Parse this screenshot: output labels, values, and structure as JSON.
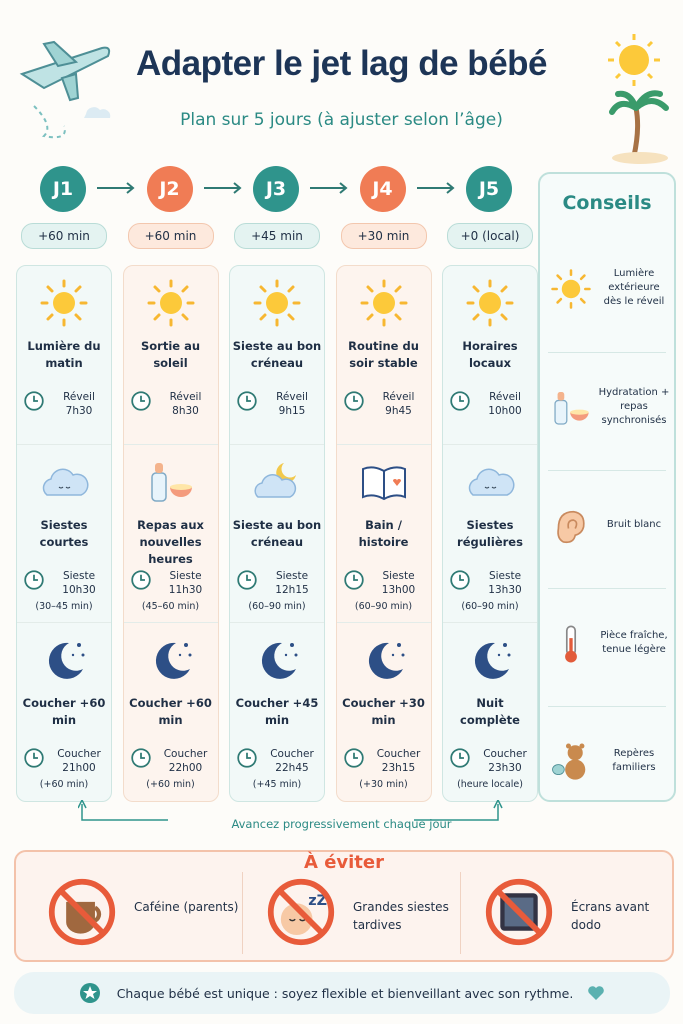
{
  "header": {
    "title": "Adapter le jet lag de bébé",
    "subtitle": "Plan sur 5 jours (à ajuster selon l’âge)"
  },
  "days": [
    {
      "label": "J1",
      "shift": "+60 min",
      "cards": [
        {
          "title": "Lumière du matin",
          "time_label": "Réveil",
          "time": "7h30"
        },
        {
          "title": "Siestes courtes",
          "time_label": "Sieste",
          "time": "10h30",
          "note": "(30–45 min)"
        },
        {
          "title": "Coucher +60 min",
          "time_label": "Coucher",
          "time": "21h00",
          "note": "(+60 min)"
        }
      ]
    },
    {
      "label": "J2",
      "shift": "+60 min",
      "cards": [
        {
          "title": "Sortie au soleil",
          "time_label": "Réveil",
          "time": "8h30"
        },
        {
          "title": "Repas aux nouvelles heures",
          "time_label": "Sieste",
          "time": "11h30",
          "note": "(45–60 min)"
        },
        {
          "title": "Coucher +60 min",
          "time_label": "Coucher",
          "time": "22h00",
          "note": "(+60 min)"
        }
      ]
    },
    {
      "label": "J3",
      "shift": "+45 min",
      "cards": [
        {
          "title": "Sieste au bon créneau",
          "time_label": "Réveil",
          "time": "9h15"
        },
        {
          "title": "Sieste au bon créneau",
          "time_label": "Sieste",
          "time": "12h15",
          "note": "(60–90 min)"
        },
        {
          "title": "Coucher +45 min",
          "time_label": "Coucher",
          "time": "22h45",
          "note": "(+45 min)"
        }
      ]
    },
    {
      "label": "J4",
      "shift": "+30 min",
      "cards": [
        {
          "title": "Routine du soir stable",
          "time_label": "Réveil",
          "time": "9h45"
        },
        {
          "title": "Bain / histoire",
          "time_label": "Sieste",
          "time": "13h00",
          "note": "(60–90 min)"
        },
        {
          "title": "Coucher +30 min",
          "time_label": "Coucher",
          "time": "23h15",
          "note": "(+30 min)"
        }
      ]
    },
    {
      "label": "J5",
      "shift": "+0 (local)",
      "cards": [
        {
          "title": "Horaires locaux",
          "time_label": "Réveil",
          "time": "10h00"
        },
        {
          "title": "Siestes régulières",
          "time_label": "Sieste",
          "time": "13h30",
          "note": "(60–90 min)"
        },
        {
          "title": "Nuit complète",
          "time_label": "Coucher",
          "time": "23h30",
          "note": "(heure locale)"
        }
      ]
    }
  ],
  "progress_note": "Avancez progressivement chaque jour",
  "tips": {
    "title": "Conseils",
    "items": [
      "Lumière extérieure dès le réveil",
      "Hydratation + repas synchronisés",
      "Bruit blanc",
      "Pièce fraîche, tenue légère",
      "Repères familiers"
    ]
  },
  "avoid": {
    "title": "À éviter",
    "items": [
      "Caféine (parents)",
      "Grandes siestes tardives",
      "Écrans avant dodo"
    ]
  },
  "closing": "Chaque bébé est unique : soyez flexible et bienveillant avec son rythme."
}
